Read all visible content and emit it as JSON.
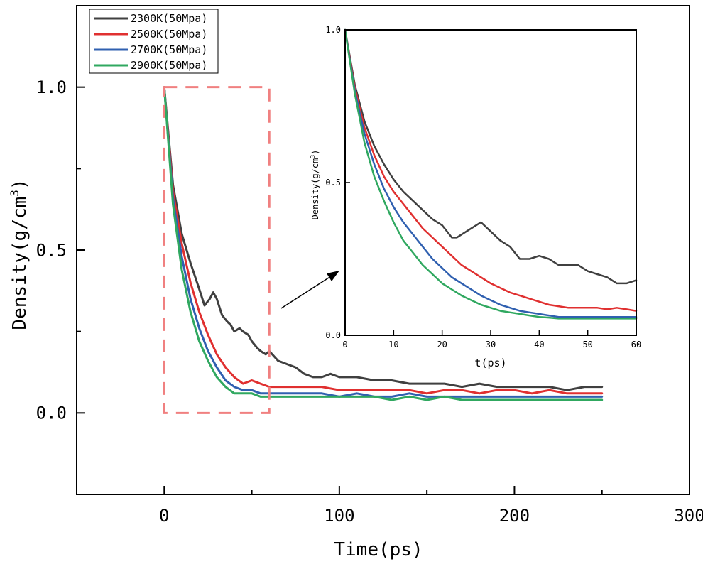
{
  "chart_data": [
    {
      "id": "main",
      "type": "line",
      "title": "",
      "xlabel": "Time(ps)",
      "ylabel": "Density(g/cm",
      "ylabel_sup": "3",
      "ylabel_close": ")",
      "xlim": [
        -50,
        300
      ],
      "ylim": [
        -0.25,
        1.25
      ],
      "xticks": [
        0,
        100,
        200,
        300
      ],
      "yticks": [
        0.0,
        0.5,
        1.0
      ],
      "xtick_labels": [
        "0",
        "100",
        "200",
        "300"
      ],
      "ytick_labels": [
        "0.0",
        "0.5",
        "1.0"
      ],
      "legend_position": "top-left",
      "series": [
        {
          "name": "2300K(50Mpa)",
          "color": "#404040",
          "x": [
            0,
            5,
            10,
            15,
            20,
            23,
            26,
            28,
            30,
            33,
            36,
            38,
            40,
            43,
            45,
            48,
            50,
            53,
            55,
            58,
            60,
            65,
            70,
            75,
            80,
            85,
            90,
            95,
            100,
            110,
            120,
            130,
            140,
            150,
            160,
            170,
            180,
            190,
            200,
            210,
            220,
            230,
            240,
            250
          ],
          "y": [
            1.0,
            0.7,
            0.55,
            0.46,
            0.38,
            0.33,
            0.35,
            0.37,
            0.35,
            0.3,
            0.28,
            0.27,
            0.25,
            0.26,
            0.25,
            0.24,
            0.22,
            0.2,
            0.19,
            0.18,
            0.19,
            0.16,
            0.15,
            0.14,
            0.12,
            0.11,
            0.11,
            0.12,
            0.11,
            0.11,
            0.1,
            0.1,
            0.09,
            0.09,
            0.09,
            0.08,
            0.09,
            0.08,
            0.08,
            0.08,
            0.08,
            0.07,
            0.08,
            0.08
          ]
        },
        {
          "name": "2500K(50Mpa)",
          "color": "#e03030",
          "x": [
            0,
            5,
            10,
            15,
            20,
            25,
            30,
            35,
            40,
            45,
            50,
            55,
            60,
            70,
            80,
            90,
            100,
            110,
            120,
            130,
            140,
            150,
            160,
            170,
            180,
            190,
            200,
            210,
            220,
            230,
            240,
            250
          ],
          "y": [
            1.0,
            0.68,
            0.52,
            0.4,
            0.31,
            0.24,
            0.18,
            0.14,
            0.11,
            0.09,
            0.1,
            0.09,
            0.08,
            0.08,
            0.08,
            0.08,
            0.07,
            0.07,
            0.07,
            0.07,
            0.07,
            0.06,
            0.07,
            0.07,
            0.06,
            0.07,
            0.07,
            0.06,
            0.07,
            0.06,
            0.06,
            0.06
          ]
        },
        {
          "name": "2700K(50Mpa)",
          "color": "#3060b0",
          "x": [
            0,
            5,
            10,
            15,
            20,
            25,
            30,
            35,
            40,
            45,
            50,
            55,
            60,
            70,
            80,
            90,
            100,
            110,
            120,
            130,
            140,
            150,
            160,
            170,
            180,
            190,
            200,
            210,
            220,
            230,
            240,
            250
          ],
          "y": [
            1.0,
            0.66,
            0.48,
            0.35,
            0.26,
            0.19,
            0.14,
            0.1,
            0.08,
            0.07,
            0.07,
            0.06,
            0.06,
            0.06,
            0.06,
            0.06,
            0.05,
            0.06,
            0.05,
            0.05,
            0.06,
            0.05,
            0.05,
            0.05,
            0.05,
            0.05,
            0.05,
            0.05,
            0.05,
            0.05,
            0.05,
            0.05
          ]
        },
        {
          "name": "2900K(50Mpa)",
          "color": "#30a860",
          "x": [
            0,
            5,
            10,
            15,
            20,
            25,
            30,
            35,
            40,
            45,
            50,
            55,
            60,
            70,
            80,
            90,
            100,
            110,
            120,
            130,
            140,
            150,
            160,
            170,
            180,
            190,
            200,
            210,
            220,
            230,
            240,
            250
          ],
          "y": [
            1.0,
            0.64,
            0.44,
            0.31,
            0.22,
            0.16,
            0.11,
            0.08,
            0.06,
            0.06,
            0.06,
            0.05,
            0.05,
            0.05,
            0.05,
            0.05,
            0.05,
            0.05,
            0.05,
            0.04,
            0.05,
            0.04,
            0.05,
            0.04,
            0.04,
            0.04,
            0.04,
            0.04,
            0.04,
            0.04,
            0.04,
            0.04
          ]
        }
      ],
      "highlight_box": {
        "x": [
          0,
          60
        ],
        "y": [
          0.0,
          1.0
        ],
        "color": "#f08080",
        "style": "dashed"
      }
    },
    {
      "id": "inset",
      "type": "line",
      "title": "",
      "xlabel": "t(ps)",
      "ylabel": "Density(g/cm",
      "ylabel_sup": "3",
      "ylabel_close": ")",
      "xlim": [
        0,
        60
      ],
      "ylim": [
        0.0,
        1.0
      ],
      "xticks": [
        0,
        10,
        20,
        30,
        40,
        50,
        60
      ],
      "yticks": [
        0.0,
        0.5,
        1.0
      ],
      "xtick_labels": [
        "0",
        "10",
        "20",
        "30",
        "40",
        "50",
        "60"
      ],
      "ytick_labels": [
        "0.0",
        "0.5",
        "1.0"
      ],
      "series": [
        {
          "name": "2300K(50Mpa)",
          "color": "#404040",
          "x": [
            0,
            2,
            4,
            6,
            8,
            10,
            12,
            14,
            16,
            18,
            20,
            22,
            23,
            25,
            27,
            28,
            30,
            32,
            34,
            36,
            38,
            40,
            42,
            44,
            46,
            48,
            50,
            52,
            54,
            56,
            58,
            60
          ],
          "y": [
            1.0,
            0.82,
            0.7,
            0.62,
            0.56,
            0.51,
            0.47,
            0.44,
            0.41,
            0.38,
            0.36,
            0.32,
            0.32,
            0.34,
            0.36,
            0.37,
            0.34,
            0.31,
            0.29,
            0.25,
            0.25,
            0.26,
            0.25,
            0.23,
            0.23,
            0.23,
            0.21,
            0.2,
            0.19,
            0.17,
            0.17,
            0.18
          ]
        },
        {
          "name": "2500K(50Mpa)",
          "color": "#e03030",
          "x": [
            0,
            2,
            4,
            6,
            8,
            10,
            12,
            14,
            16,
            18,
            20,
            22,
            24,
            26,
            28,
            30,
            32,
            34,
            36,
            38,
            40,
            42,
            44,
            46,
            48,
            50,
            52,
            54,
            56,
            58,
            60
          ],
          "y": [
            1.0,
            0.81,
            0.68,
            0.59,
            0.52,
            0.47,
            0.43,
            0.39,
            0.35,
            0.32,
            0.29,
            0.26,
            0.23,
            0.21,
            0.19,
            0.17,
            0.155,
            0.14,
            0.13,
            0.12,
            0.11,
            0.1,
            0.095,
            0.09,
            0.09,
            0.09,
            0.09,
            0.085,
            0.09,
            0.085,
            0.08
          ]
        },
        {
          "name": "2700K(50Mpa)",
          "color": "#3060b0",
          "x": [
            0,
            2,
            4,
            6,
            8,
            10,
            12,
            14,
            16,
            18,
            20,
            22,
            24,
            26,
            28,
            30,
            32,
            34,
            36,
            38,
            40,
            42,
            44,
            46,
            48,
            50,
            52,
            54,
            56,
            58,
            60
          ],
          "y": [
            1.0,
            0.8,
            0.66,
            0.56,
            0.48,
            0.42,
            0.37,
            0.33,
            0.29,
            0.25,
            0.22,
            0.19,
            0.17,
            0.15,
            0.13,
            0.115,
            0.1,
            0.09,
            0.08,
            0.075,
            0.07,
            0.065,
            0.06,
            0.06,
            0.06,
            0.06,
            0.06,
            0.06,
            0.06,
            0.06,
            0.06
          ]
        },
        {
          "name": "2900K(50Mpa)",
          "color": "#30a860",
          "x": [
            0,
            2,
            4,
            6,
            8,
            10,
            12,
            14,
            16,
            18,
            20,
            22,
            24,
            26,
            28,
            30,
            32,
            34,
            36,
            38,
            40,
            42,
            44,
            46,
            48,
            50,
            52,
            54,
            56,
            58,
            60
          ],
          "y": [
            1.0,
            0.79,
            0.63,
            0.52,
            0.44,
            0.37,
            0.31,
            0.27,
            0.23,
            0.2,
            0.17,
            0.15,
            0.13,
            0.115,
            0.1,
            0.09,
            0.08,
            0.075,
            0.07,
            0.065,
            0.06,
            0.058,
            0.055,
            0.055,
            0.055,
            0.055,
            0.055,
            0.055,
            0.055,
            0.055,
            0.055
          ]
        }
      ]
    }
  ]
}
